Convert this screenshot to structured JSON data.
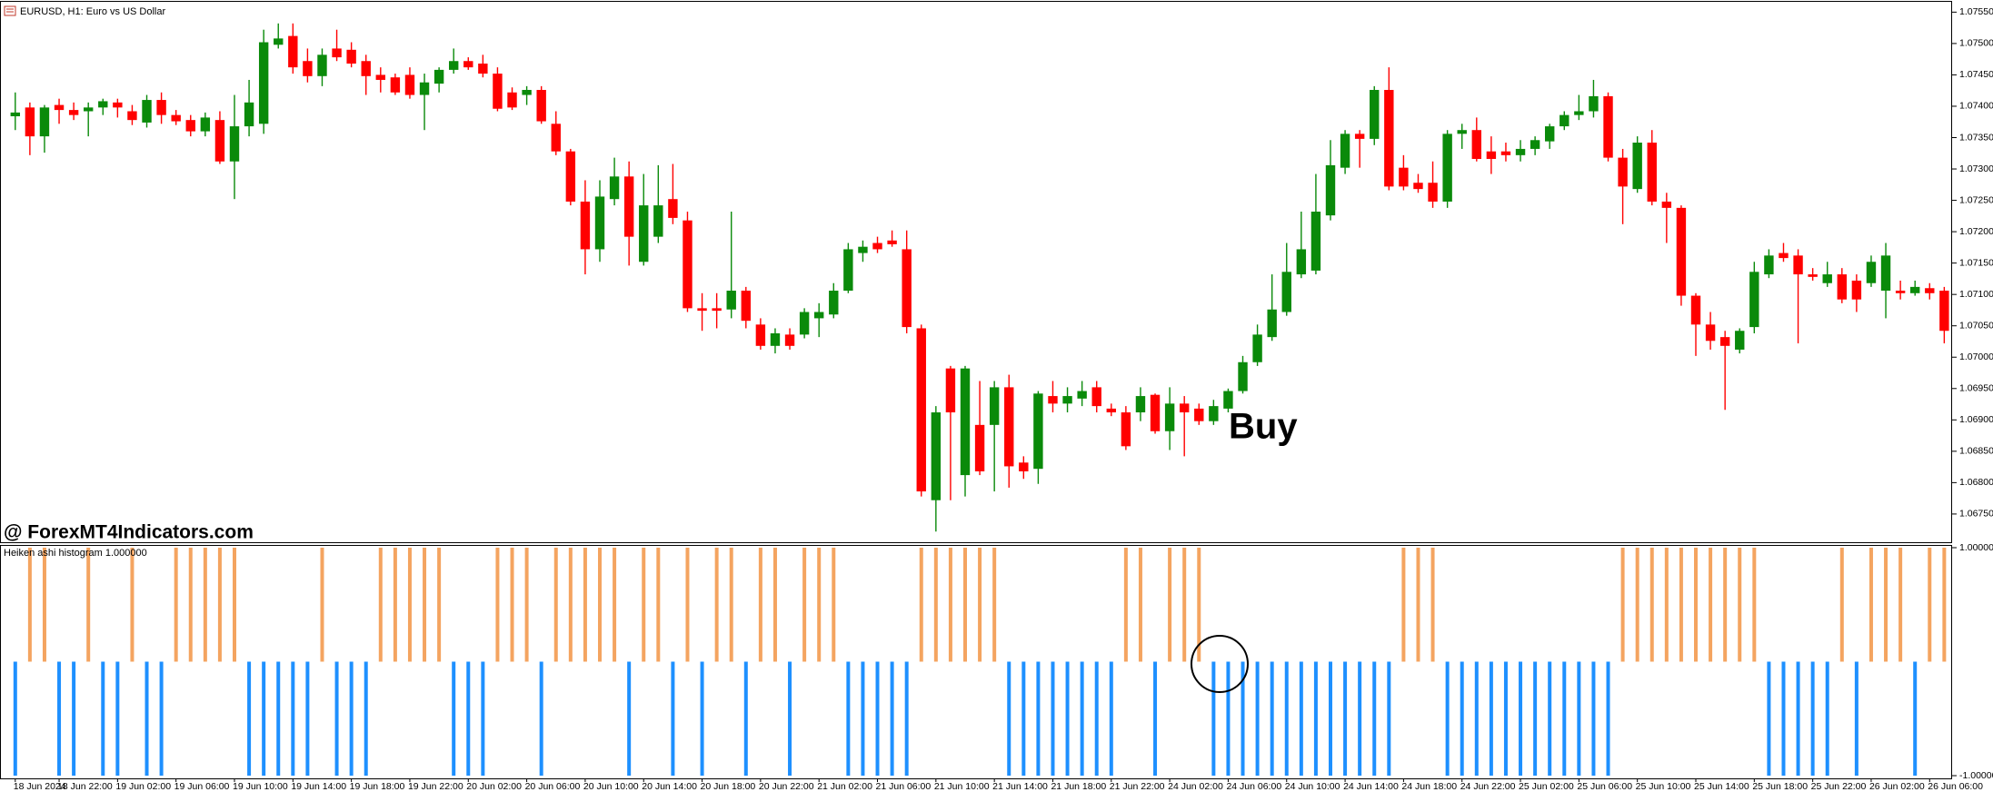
{
  "chart_data": [
    {
      "type": "candlestick",
      "title": "EURUSD, H1:  Euro vs US Dollar",
      "watermark": "@ ForexMT4Indicators.com",
      "annotation": "Buy",
      "up_color": "#0a8a0a",
      "down_color": "#ff0000",
      "categories": [
        "18 Jun 2024",
        null,
        null,
        "18 Jun 22:00",
        null,
        null,
        null,
        "19 Jun 02:00",
        null,
        null,
        null,
        "19 Jun 06:00",
        null,
        null,
        null,
        "19 Jun 10:00",
        null,
        null,
        null,
        "19 Jun 14:00",
        null,
        null,
        null,
        "19 Jun 18:00",
        null,
        null,
        null,
        "19 Jun 22:00",
        null,
        null,
        null,
        "20 Jun 02:00",
        null,
        null,
        null,
        "20 Jun 06:00",
        null,
        null,
        null,
        "20 Jun 10:00",
        null,
        null,
        null,
        "20 Jun 14:00",
        null,
        null,
        null,
        "20 Jun 18:00",
        null,
        null,
        null,
        "20 Jun 22:00",
        null,
        null,
        null,
        "21 Jun 02:00",
        null,
        null,
        null,
        "21 Jun 06:00",
        null,
        null,
        null,
        "21 Jun 10:00",
        null,
        null,
        null,
        "21 Jun 14:00",
        null,
        null,
        null,
        "21 Jun 18:00",
        null,
        null,
        null,
        "21 Jun 22:00",
        null,
        null,
        null,
        "24 Jun 02:00",
        null,
        null,
        null,
        "24 Jun 06:00",
        null,
        null,
        null,
        "24 Jun 10:00",
        null,
        null,
        null,
        "24 Jun 14:00",
        null,
        null,
        null,
        "24 Jun 18:00",
        null,
        null,
        null,
        "24 Jun 22:00",
        null,
        null,
        null,
        "25 Jun 02:00",
        null,
        null,
        null,
        "25 Jun 06:00",
        null,
        null,
        null,
        "25 Jun 10:00",
        null,
        null,
        null,
        "25 Jun 14:00",
        null,
        null,
        null,
        "25 Jun 18:00",
        null,
        null,
        null,
        "25 Jun 22:00",
        null,
        null,
        null,
        "26 Jun 02:00",
        null,
        null,
        null,
        "26 Jun 06:00",
        null
      ],
      "open": [
        1.07384,
        1.07398,
        1.07352,
        1.07402,
        1.07394,
        1.07392,
        1.07398,
        1.07406,
        1.07392,
        1.07374,
        1.0741,
        1.07386,
        1.07378,
        1.0736,
        1.07378,
        1.07312,
        1.07368,
        1.07372,
        1.07498,
        1.07512,
        1.07472,
        1.07448,
        1.07492,
        1.0749,
        1.07472,
        1.0745,
        1.07446,
        1.0745,
        1.07418,
        1.07436,
        1.07458,
        1.07472,
        1.07468,
        1.07452,
        1.07422,
        1.07418,
        1.07426,
        1.07372,
        1.07328,
        1.07248,
        1.07172,
        1.07252,
        1.07288,
        1.07152,
        1.07192,
        1.07252,
        1.07218,
        1.07078,
        1.07078,
        1.07076,
        1.07106,
        1.07052,
        1.07018,
        1.07036,
        1.07036,
        1.07062,
        1.07068,
        1.07106,
        1.07166,
        1.07182,
        1.07186,
        1.07172,
        1.07046,
        1.06772,
        1.06982,
        1.06812,
        1.06892,
        1.06892,
        1.06952,
        1.06832,
        1.06822,
        1.06938,
        1.06926,
        1.06934,
        1.06952,
        1.06918,
        1.06912,
        1.06912,
        1.0694,
        1.06882,
        1.06926,
        1.06918,
        1.06898,
        1.06918,
        1.06946,
        1.06992,
        1.07032,
        1.07072,
        1.07132,
        1.07138,
        1.07226,
        1.07302,
        1.07356,
        1.07348,
        1.07426,
        1.07302,
        1.07278,
        1.07278,
        1.07248,
        1.07356,
        1.07362,
        1.07328,
        1.07328,
        1.07322,
        1.07332,
        1.07344,
        1.07368,
        1.07386,
        1.07392,
        1.07416,
        1.07318,
        1.07268,
        1.07342,
        1.07248,
        1.07238,
        1.07098,
        1.07052,
        1.07032,
        1.07012,
        1.07048,
        1.07132,
        1.07166,
        1.07162,
        1.07132,
        1.07118,
        1.07132,
        1.07122,
        1.07118,
        1.07106,
        1.07106,
        1.07102,
        1.0711,
        1.07106
      ],
      "high": [
        1.07422,
        1.07406,
        1.07402,
        1.07412,
        1.07406,
        1.07406,
        1.07412,
        1.07412,
        1.07402,
        1.07418,
        1.07422,
        1.07394,
        1.07386,
        1.0739,
        1.07392,
        1.07418,
        1.07442,
        1.07522,
        1.07532,
        1.07532,
        1.07492,
        1.07492,
        1.07522,
        1.07502,
        1.07482,
        1.07462,
        1.07452,
        1.07462,
        1.07452,
        1.07462,
        1.07492,
        1.07478,
        1.07482,
        1.07462,
        1.0743,
        1.07432,
        1.07432,
        1.07392,
        1.07332,
        1.07282,
        1.07282,
        1.07318,
        1.07312,
        1.07292,
        1.07306,
        1.07308,
        1.07232,
        1.07102,
        1.07102,
        1.07232,
        1.07112,
        1.07062,
        1.07046,
        1.07046,
        1.07078,
        1.07086,
        1.07118,
        1.07182,
        1.07186,
        1.07192,
        1.07202,
        1.07202,
        1.07052,
        1.06922,
        1.06986,
        1.06986,
        1.06962,
        1.06962,
        1.06972,
        1.06842,
        1.06946,
        1.06962,
        1.06952,
        1.06962,
        1.06962,
        1.06926,
        1.06922,
        1.06952,
        1.06942,
        1.06952,
        1.06938,
        1.06926,
        1.06932,
        1.0695,
        1.07002,
        1.07052,
        1.07132,
        1.07182,
        1.07232,
        1.07292,
        1.07346,
        1.07362,
        1.07362,
        1.07432,
        1.07462,
        1.07322,
        1.07292,
        1.07312,
        1.07362,
        1.07372,
        1.07382,
        1.07352,
        1.07342,
        1.07346,
        1.07352,
        1.07372,
        1.07392,
        1.07418,
        1.07442,
        1.07422,
        1.07332,
        1.07352,
        1.07362,
        1.07262,
        1.07242,
        1.07102,
        1.07072,
        1.07042,
        1.07046,
        1.07152,
        1.07172,
        1.07182,
        1.07172,
        1.07142,
        1.07152,
        1.07142,
        1.07132,
        1.07162,
        1.07182,
        1.07122,
        1.07122,
        1.07118,
        1.07112
      ],
      "low": [
        1.07362,
        1.07322,
        1.07326,
        1.07372,
        1.07378,
        1.07352,
        1.07386,
        1.07382,
        1.0737,
        1.07366,
        1.07372,
        1.0737,
        1.07352,
        1.07352,
        1.07308,
        1.07252,
        1.07352,
        1.07356,
        1.07492,
        1.07452,
        1.07438,
        1.07432,
        1.07472,
        1.07462,
        1.07418,
        1.07422,
        1.07418,
        1.07412,
        1.07362,
        1.07422,
        1.07452,
        1.07458,
        1.07446,
        1.07392,
        1.07394,
        1.07402,
        1.07372,
        1.07322,
        1.07242,
        1.07132,
        1.07152,
        1.07242,
        1.07146,
        1.07146,
        1.07182,
        1.07212,
        1.07072,
        1.07042,
        1.07046,
        1.07062,
        1.07046,
        1.07012,
        1.07006,
        1.07012,
        1.0703,
        1.07032,
        1.07062,
        1.07102,
        1.07152,
        1.07166,
        1.07176,
        1.07038,
        1.06778,
        1.06722,
        1.06772,
        1.06778,
        1.06812,
        1.06786,
        1.06792,
        1.06806,
        1.06798,
        1.06912,
        1.06912,
        1.06922,
        1.06912,
        1.06906,
        1.06852,
        1.06898,
        1.06878,
        1.06852,
        1.06842,
        1.06892,
        1.06892,
        1.06912,
        1.06942,
        1.06986,
        1.07026,
        1.07066,
        1.07126,
        1.07132,
        1.07218,
        1.07292,
        1.07302,
        1.07338,
        1.07266,
        1.07266,
        1.07262,
        1.07238,
        1.07238,
        1.07332,
        1.07312,
        1.07292,
        1.07312,
        1.07312,
        1.07322,
        1.07332,
        1.07362,
        1.07378,
        1.07382,
        1.07312,
        1.07212,
        1.07262,
        1.07242,
        1.07182,
        1.07082,
        1.07002,
        1.07012,
        1.06916,
        1.07006,
        1.07038,
        1.07126,
        1.07152,
        1.07022,
        1.07122,
        1.07112,
        1.07086,
        1.07072,
        1.07112,
        1.07062,
        1.07092,
        1.07098,
        1.07092,
        1.07022
      ],
      "close": [
        1.0739,
        1.07352,
        1.07398,
        1.07394,
        1.07386,
        1.07398,
        1.07408,
        1.07398,
        1.07378,
        1.0741,
        1.07386,
        1.07376,
        1.0736,
        1.07382,
        1.07312,
        1.07368,
        1.07406,
        1.07502,
        1.07508,
        1.07462,
        1.07448,
        1.07482,
        1.07478,
        1.07468,
        1.07448,
        1.07442,
        1.07422,
        1.07418,
        1.07438,
        1.07458,
        1.07472,
        1.07462,
        1.07452,
        1.07396,
        1.07398,
        1.07426,
        1.07376,
        1.07328,
        1.07248,
        1.07172,
        1.07256,
        1.07288,
        1.07192,
        1.07242,
        1.07242,
        1.07222,
        1.07078,
        1.07074,
        1.07074,
        1.07106,
        1.07058,
        1.07018,
        1.07038,
        1.07018,
        1.07072,
        1.07072,
        1.07106,
        1.07172,
        1.07176,
        1.07172,
        1.0718,
        1.07048,
        1.06786,
        1.06912,
        1.06912,
        1.06982,
        1.06818,
        1.06952,
        1.06826,
        1.06818,
        1.06942,
        1.06926,
        1.06938,
        1.06946,
        1.06922,
        1.06912,
        1.06858,
        1.06938,
        1.06882,
        1.06926,
        1.06912,
        1.06898,
        1.06922,
        1.06946,
        1.06992,
        1.07036,
        1.07076,
        1.07136,
        1.07172,
        1.07232,
        1.07306,
        1.07356,
        1.07348,
        1.07426,
        1.07272,
        1.07272,
        1.07268,
        1.07248,
        1.07356,
        1.07362,
        1.07316,
        1.07316,
        1.07322,
        1.07332,
        1.07346,
        1.07368,
        1.07386,
        1.07392,
        1.07416,
        1.07318,
        1.07272,
        1.07342,
        1.07248,
        1.07238,
        1.07098,
        1.07052,
        1.07026,
        1.07018,
        1.07042,
        1.07136,
        1.07162,
        1.07158,
        1.07132,
        1.07128,
        1.07132,
        1.07092,
        1.07092,
        1.07152,
        1.07162,
        1.07102,
        1.07112,
        1.07102,
        1.07042
      ],
      "ylim": [
        1.06705,
        1.07565
      ],
      "yticks": [
        {
          "value": 1.0675,
          "label": "1.06750"
        },
        {
          "value": 1.068,
          "label": "1.06800"
        },
        {
          "value": 1.0685,
          "label": "1.06850"
        },
        {
          "value": 1.069,
          "label": "1.06900"
        },
        {
          "value": 1.0695,
          "label": "1.06950"
        },
        {
          "value": 1.07,
          "label": "1.07000"
        },
        {
          "value": 1.0705,
          "label": "1.07050"
        },
        {
          "value": 1.071,
          "label": "1.07100"
        },
        {
          "value": 1.0715,
          "label": "1.07150"
        },
        {
          "value": 1.072,
          "label": "1.07200"
        },
        {
          "value": 1.0725,
          "label": "1.07250"
        },
        {
          "value": 1.073,
          "label": "1.07300"
        },
        {
          "value": 1.0735,
          "label": "1.07350"
        },
        {
          "value": 1.074,
          "label": "1.07400"
        },
        {
          "value": 1.0745,
          "label": "1.07450"
        },
        {
          "value": 1.075,
          "label": "1.07500"
        },
        {
          "value": 1.0755,
          "label": "1.07550"
        }
      ],
      "grid": false
    },
    {
      "type": "bar",
      "title": "Heiken ashi histogram 1.000000",
      "up_color": "#f4a460",
      "down_color": "#1e90ff",
      "values": [
        -1,
        1,
        1,
        -1,
        -1,
        1,
        -1,
        -1,
        1,
        -1,
        -1,
        1,
        1,
        1,
        1,
        1,
        -1,
        -1,
        -1,
        -1,
        -1,
        1,
        -1,
        -1,
        -1,
        1,
        1,
        1,
        1,
        1,
        -1,
        -1,
        -1,
        1,
        1,
        1,
        -1,
        1,
        1,
        1,
        1,
        1,
        -1,
        1,
        1,
        -1,
        1,
        -1,
        1,
        1,
        -1,
        1,
        1,
        -1,
        1,
        1,
        1,
        -1,
        -1,
        -1,
        -1,
        -1,
        1,
        1,
        1,
        1,
        1,
        1,
        -1,
        -1,
        -1,
        -1,
        -1,
        -1,
        -1,
        -1,
        1,
        1,
        -1,
        1,
        1,
        1,
        -1,
        -1,
        -1,
        -1,
        -1,
        -1,
        -1,
        -1,
        -1,
        -1,
        -1,
        -1,
        -1,
        1,
        1,
        1,
        -1,
        -1,
        -1,
        -1,
        -1,
        -1,
        -1,
        -1,
        -1,
        -1,
        -1,
        -1,
        1,
        1,
        1,
        1,
        1,
        1,
        1,
        1,
        1,
        1,
        -1,
        -1,
        -1,
        -1,
        -1,
        1,
        -1,
        1,
        1,
        1,
        -1,
        1,
        1
      ],
      "ylim": [
        -1,
        1
      ],
      "yticks": [
        {
          "value": 1,
          "label": "1.000000"
        },
        {
          "value": -1,
          "label": "-1.000000"
        }
      ],
      "grid": false
    }
  ]
}
